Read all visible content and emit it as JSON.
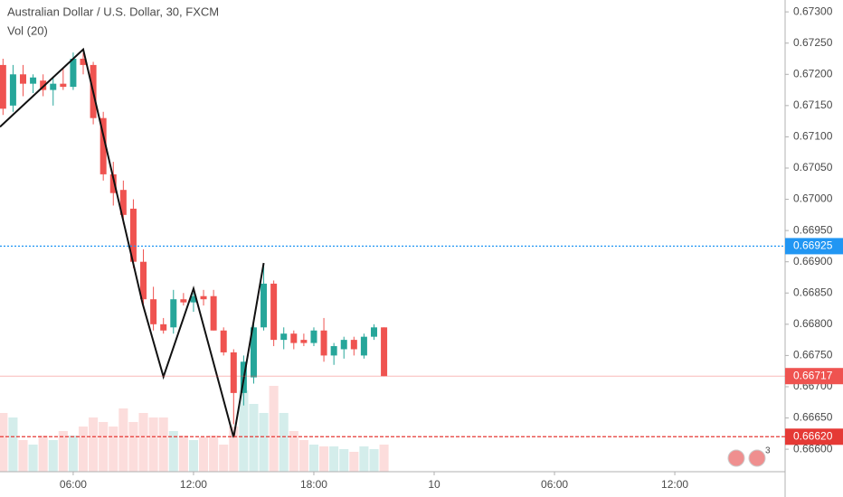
{
  "chart_data": {
    "type": "candlestick",
    "title": "Australian Dollar / U.S. Dollar, 30, FXCM",
    "subtitle": "Vol (20)",
    "up_color": "#26a69a",
    "down_color": "#ef5350",
    "x": [
      2.5,
      3,
      3.5,
      4,
      4.5,
      5,
      5.5,
      6,
      6.5,
      7,
      7.5,
      8,
      8.5,
      9,
      9.5,
      10,
      10.5,
      11,
      11.5,
      12,
      12.5,
      13,
      13.5,
      14,
      14.5,
      15,
      15.5,
      16,
      16.5,
      17,
      17.5,
      18,
      18.5,
      19,
      19.5,
      20,
      20.5,
      21,
      21.5
    ],
    "open": [
      0.67215,
      0.6715,
      0.672,
      0.67185,
      0.6719,
      0.67175,
      0.67185,
      0.6718,
      0.67225,
      0.67215,
      0.6713,
      0.6704,
      0.67015,
      0.66985,
      0.669,
      0.6684,
      0.668,
      0.66795,
      0.6684,
      0.66835,
      0.66845,
      0.66845,
      0.6679,
      0.66755,
      0.6669,
      0.66715,
      0.66795,
      0.66865,
      0.66775,
      0.66785,
      0.66775,
      0.6677,
      0.6679,
      0.6675,
      0.6676,
      0.66775,
      0.6675,
      0.6678,
      0.66795
    ],
    "high": [
      0.67225,
      0.67215,
      0.67215,
      0.672,
      0.672,
      0.67195,
      0.6721,
      0.67235,
      0.67235,
      0.6722,
      0.6714,
      0.6706,
      0.6703,
      0.67,
      0.6692,
      0.6686,
      0.6681,
      0.66855,
      0.6685,
      0.6685,
      0.66855,
      0.66855,
      0.66795,
      0.6676,
      0.6675,
      0.668,
      0.66895,
      0.6687,
      0.66795,
      0.6679,
      0.66785,
      0.66795,
      0.6681,
      0.6677,
      0.6678,
      0.6678,
      0.66785,
      0.668,
      0.66795
    ],
    "low": [
      0.67135,
      0.6714,
      0.67165,
      0.6717,
      0.67165,
      0.6715,
      0.67175,
      0.67175,
      0.672,
      0.6712,
      0.6703,
      0.6699,
      0.6696,
      0.6689,
      0.6683,
      0.6679,
      0.66785,
      0.66785,
      0.6683,
      0.6682,
      0.6683,
      0.6679,
      0.6675,
      0.6664,
      0.6667,
      0.66705,
      0.6679,
      0.66765,
      0.6676,
      0.6676,
      0.66765,
      0.66765,
      0.6674,
      0.66735,
      0.66745,
      0.6675,
      0.66745,
      0.66775,
      0.66717
    ],
    "close": [
      0.67145,
      0.672,
      0.67185,
      0.67195,
      0.67175,
      0.67185,
      0.6718,
      0.67225,
      0.67215,
      0.6713,
      0.6704,
      0.6701,
      0.66975,
      0.669,
      0.6684,
      0.668,
      0.6679,
      0.6684,
      0.66835,
      0.66845,
      0.6684,
      0.6679,
      0.66755,
      0.6669,
      0.6674,
      0.66795,
      0.66865,
      0.66775,
      0.66785,
      0.6677,
      0.6677,
      0.6679,
      0.6675,
      0.66765,
      0.66775,
      0.6676,
      0.6678,
      0.66795,
      0.66717
    ],
    "volume": [
      65,
      60,
      35,
      30,
      40,
      35,
      45,
      40,
      50,
      60,
      55,
      50,
      70,
      55,
      65,
      60,
      60,
      45,
      40,
      35,
      38,
      40,
      30,
      50,
      90,
      75,
      65,
      95,
      65,
      45,
      35,
      30,
      28,
      28,
      25,
      22,
      28,
      25,
      30
    ],
    "zigzag": {
      "x": [
        2.35,
        6.5,
        9.47,
        10.5,
        12,
        14,
        15.5
      ],
      "y": [
        0.67116,
        0.6724,
        0.66832,
        0.66716,
        0.66857,
        0.66619,
        0.66898
      ]
    },
    "price_lines": [
      {
        "value": 0.66925,
        "label": "0.66925",
        "color": "#2196f3",
        "style": "dotted"
      },
      {
        "value": 0.66717,
        "label": "0.66717",
        "color": "#ef5350",
        "style": "solid"
      },
      {
        "value": 0.6662,
        "label": "0.66620",
        "color": "#e53935",
        "style": "dashed"
      }
    ],
    "xlim": [
      2.35,
      41.5
    ],
    "xticks": [
      {
        "value": 6,
        "label": "06:00"
      },
      {
        "value": 12,
        "label": "12:00"
      },
      {
        "value": 18,
        "label": "18:00"
      },
      {
        "value": 24,
        "label": "10"
      },
      {
        "value": 30,
        "label": "06:00"
      },
      {
        "value": 36,
        "label": "12:00"
      }
    ],
    "ylim": [
      0.66564,
      0.67319
    ],
    "yticks": [
      {
        "value": 0.666,
        "label": "0.66600"
      },
      {
        "value": 0.6665,
        "label": "0.66650"
      },
      {
        "value": 0.667,
        "label": "0.66700"
      },
      {
        "value": 0.6675,
        "label": "0.66750"
      },
      {
        "value": 0.668,
        "label": "0.66800"
      },
      {
        "value": 0.6685,
        "label": "0.66850"
      },
      {
        "value": 0.669,
        "label": "0.66900"
      },
      {
        "value": 0.6695,
        "label": "0.66950"
      },
      {
        "value": 0.67,
        "label": "0.67000"
      },
      {
        "value": 0.6705,
        "label": "0.67050"
      },
      {
        "value": 0.671,
        "label": "0.67100"
      },
      {
        "value": 0.6715,
        "label": "0.67150"
      },
      {
        "value": 0.672,
        "label": "0.67200"
      },
      {
        "value": 0.6725,
        "label": "0.67250"
      },
      {
        "value": 0.673,
        "label": "0.67300"
      }
    ],
    "events_badge": "3"
  }
}
